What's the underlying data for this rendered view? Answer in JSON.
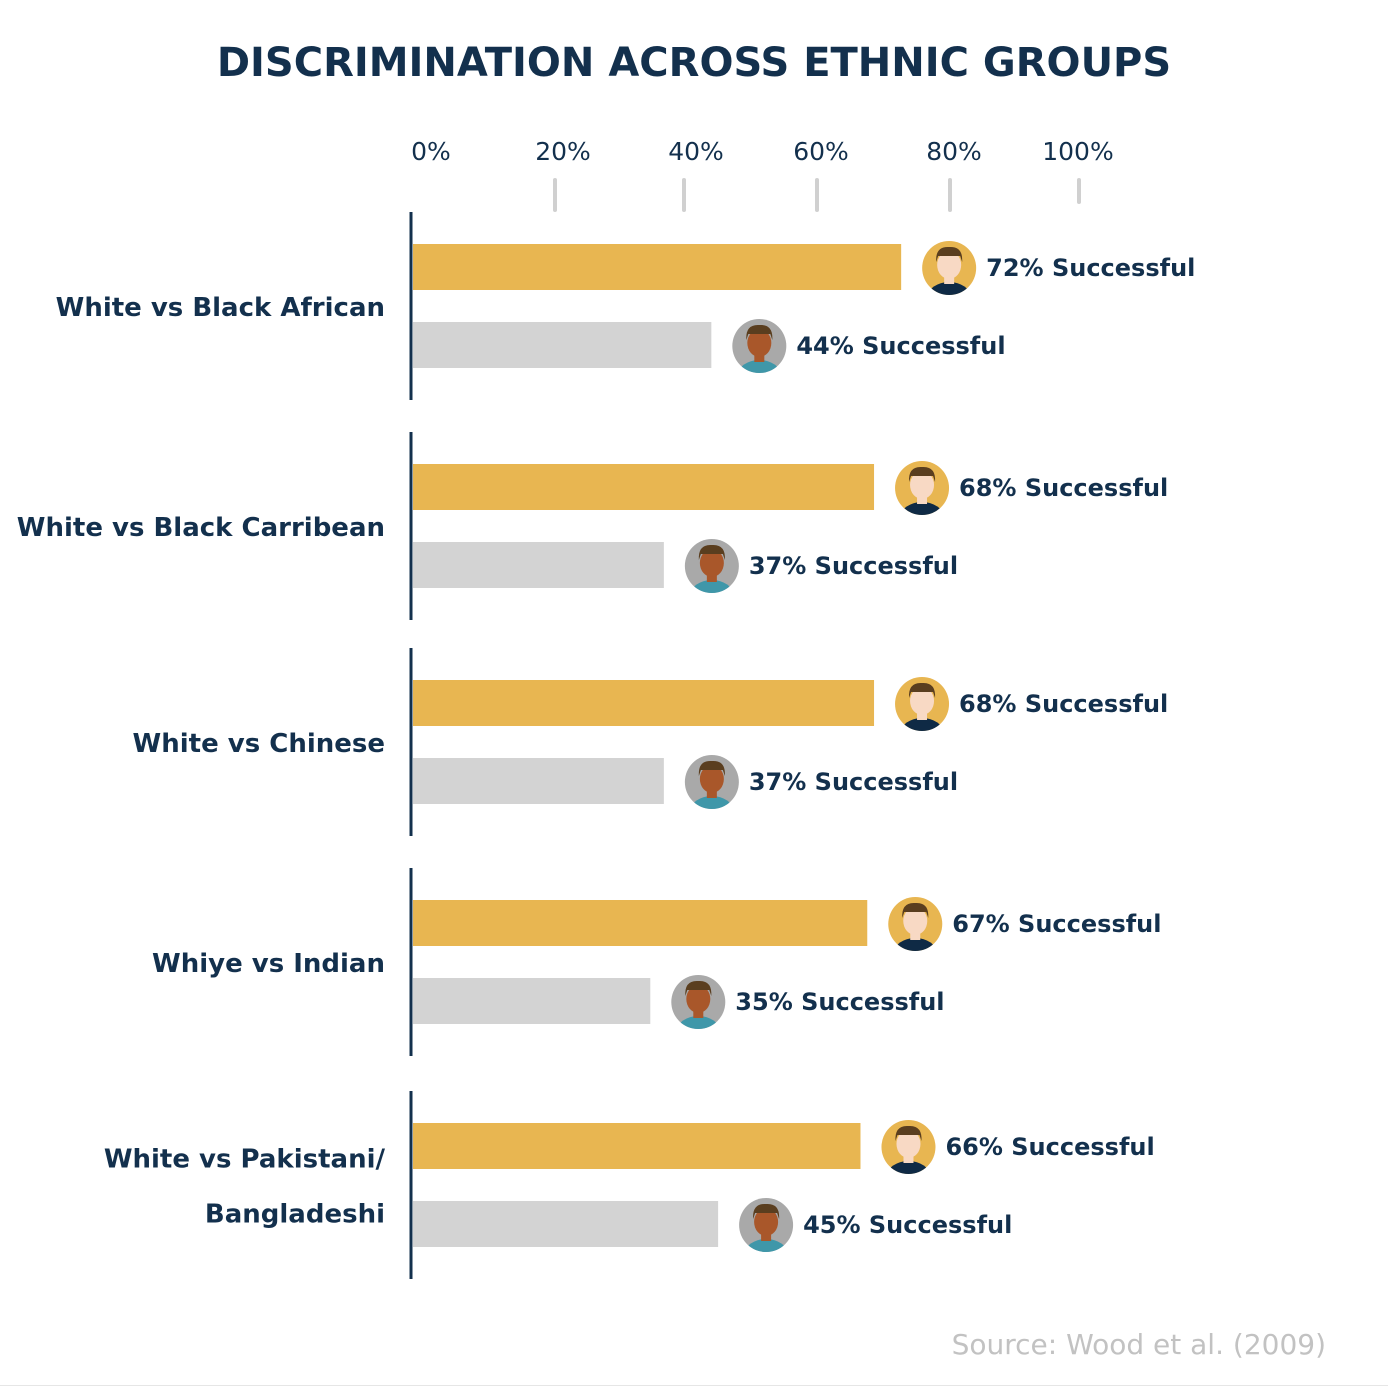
{
  "colors": {
    "title": "#13304d",
    "primary_bar": "#e8b651",
    "secondary_bar": "#d3d3d3",
    "axis": "#13304d",
    "tick_mark": "#d0d0d0",
    "source": "#c2c2c2",
    "avatar_primary_bg": "#e8b651",
    "avatar_secondary_bg": "#a9a9a9",
    "skin_light": "#f8d9c4",
    "skin_dark": "#a9572a",
    "hair": "#5a3e1f",
    "shirt_primary": "#0f2a45",
    "shirt_secondary": "#3f97a9"
  },
  "chart_data": {
    "type": "bar",
    "orientation": "horizontal",
    "title": "DISCRIMINATION ACROSS ETHNIC GROUPS",
    "xlim": [
      0,
      100
    ],
    "x_ticks": [
      "0%",
      "20%",
      "40%",
      "60%",
      "80%",
      "100%"
    ],
    "grid": false,
    "categories": [
      [
        "White vs Black African"
      ],
      [
        "White vs Black Carribean"
      ],
      [
        "White vs Chinese"
      ],
      [
        "Whiye vs Indian"
      ],
      [
        "White vs Pakistani/",
        "Bangladeshi"
      ]
    ],
    "series": [
      {
        "values": [
          72,
          68,
          68,
          67,
          66
        ],
        "labels": [
          "72% Successful",
          "68% Successful",
          "68% Successful",
          "67% Successful",
          "66% Successful"
        ],
        "icon": "white-person-avatar-icon"
      },
      {
        "values": [
          44,
          37,
          37,
          35,
          45
        ],
        "labels": [
          "44% Successful",
          "37% Successful",
          "37% Successful",
          "35% Successful",
          "45% Successful"
        ],
        "icon": "ethnic-minority-person-avatar-icon"
      }
    ]
  },
  "source": "Source: Wood et al. (2009)"
}
